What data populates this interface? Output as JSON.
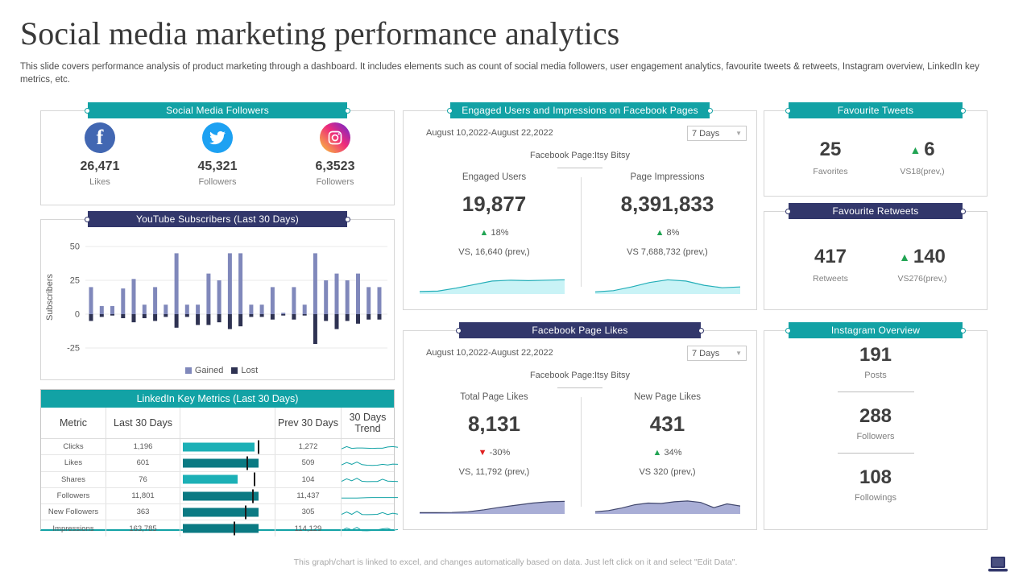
{
  "slide": {
    "title": "Social media marketing performance analytics",
    "subtitle": "This slide covers performance analysis of product marketing through a dashboard. It includes elements such as count of social media followers, user engagement analytics, favourite tweets & retweets, Instagram overview, LinkedIn key metrics, etc.",
    "footer": "This graph/chart is linked to excel, and changes automatically based on data. Just left click on it and select \"Edit Data\"."
  },
  "colors": {
    "teal": "#12a2a5",
    "navy": "#32376b",
    "gained": "#8088bb",
    "lost": "#2e3252",
    "bar_light": "#1cb0b6",
    "bar_dark": "#0b7a83",
    "spark": "#12a2a5",
    "cyan_fill": "#c9f3f6",
    "cyan_stroke": "#23aeb8",
    "purple_fill": "#a9aed6",
    "purple_stroke": "#42486e",
    "up_green": "#21a453",
    "down_red": "#e02020"
  },
  "panels": {
    "followers": {
      "title": "Social Media Followers",
      "items": [
        {
          "network": "facebook",
          "value": "26,471",
          "label": "Likes"
        },
        {
          "network": "twitter",
          "value": "45,321",
          "label": "Followers"
        },
        {
          "network": "instagram",
          "value": "6,3523",
          "label": "Followers"
        }
      ]
    },
    "youtube": {
      "title": "YouTube Subscribers (Last 30 Days)"
    },
    "linkedin": {
      "title": "LinkedIn Key Metrics (Last 30 Days)"
    },
    "engaged": {
      "title": "Engaged Users and Impressions on Facebook Pages",
      "date_range": "August 10,2022-August 22,2022",
      "period": "7 Days",
      "page_label": "Facebook Page:Itsy Bitsy",
      "metrics": [
        {
          "label": "Engaged Users",
          "value": "19,877",
          "delta": {
            "dir": "up",
            "pct": "18%"
          },
          "vs": "VS, 16,640 (prev,)"
        },
        {
          "label": "Page Impressions",
          "value": "8,391,833",
          "delta": {
            "dir": "up",
            "pct": "8%"
          },
          "vs": "VS 7,688,732 (prev,)"
        }
      ]
    },
    "fb_likes": {
      "title": "Facebook Page Likes",
      "date_range": "August 10,2022-August 22,2022",
      "period": "7 Days",
      "page_label": "Facebook Page:Itsy Bitsy",
      "metrics": [
        {
          "label": "Total Page Likes",
          "value": "8,131",
          "delta": {
            "dir": "down",
            "pct": "-30%"
          },
          "vs": "VS, 11,792 (prev,)"
        },
        {
          "label": "New Page Likes",
          "value": "431",
          "delta": {
            "dir": "up",
            "pct": "34%"
          },
          "vs": "VS 320 (prev,)"
        }
      ]
    },
    "fav_tweets": {
      "title": "Favourite Tweets",
      "value": "25",
      "value_label": "Favorites",
      "delta": {
        "dir": "up",
        "value": "6"
      },
      "vs": "VS18(prev,)"
    },
    "fav_retweets": {
      "title": "Favourite Retweets",
      "value": "417",
      "value_label": "Retweets",
      "delta": {
        "dir": "up",
        "value": "140"
      },
      "vs": "VS276(prev,)"
    },
    "instagram": {
      "title": "Instagram Overview",
      "items": [
        {
          "value": "191",
          "label": "Posts"
        },
        {
          "value": "288",
          "label": "Followers"
        },
        {
          "value": "108",
          "label": "Followings"
        }
      ]
    }
  },
  "chart_data": [
    {
      "id": "youtube_subscribers",
      "type": "bar",
      "title": "YouTube Subscribers (Last 30 Days)",
      "xlabel": "",
      "ylabel": "Subscribers",
      "ylim": [
        -25,
        50
      ],
      "yticks": [
        50,
        25,
        0,
        -25
      ],
      "grid": true,
      "legend_position": "bottom",
      "series": [
        {
          "name": "Gained",
          "color": "#8088bb",
          "values": [
            20,
            6,
            6,
            19,
            26,
            7,
            20,
            7,
            45,
            7,
            7,
            30,
            25,
            45,
            45,
            7,
            7,
            20,
            1,
            20,
            7,
            45,
            25,
            30,
            25,
            30,
            20,
            20
          ]
        },
        {
          "name": "Lost",
          "color": "#2e3252",
          "values": [
            -5,
            -2,
            -1,
            -3,
            -6,
            -3,
            -5,
            -2,
            -10,
            -2,
            -8,
            -8,
            -6,
            -11,
            -9,
            -2,
            -2,
            -4,
            -1,
            -4,
            -1,
            -22,
            -5,
            -11,
            -5,
            -7,
            -4,
            -4
          ]
        }
      ]
    },
    {
      "id": "engaged_users_trend",
      "type": "area",
      "palette": "cyan",
      "values": [
        0.12,
        0.14,
        0.28,
        0.45,
        0.62,
        0.66,
        0.64,
        0.66,
        0.68
      ]
    },
    {
      "id": "page_impressions_trend",
      "type": "area",
      "palette": "cyan",
      "values": [
        0.1,
        0.16,
        0.34,
        0.55,
        0.68,
        0.62,
        0.42,
        0.3,
        0.34
      ]
    },
    {
      "id": "total_page_likes_trend",
      "type": "area",
      "palette": "purple",
      "values": [
        0.06,
        0.06,
        0.07,
        0.1,
        0.2,
        0.32,
        0.42,
        0.52,
        0.58,
        0.6
      ]
    },
    {
      "id": "new_page_likes_trend",
      "type": "area",
      "palette": "purple",
      "values": [
        0.1,
        0.16,
        0.28,
        0.44,
        0.52,
        0.5,
        0.58,
        0.62,
        0.55,
        0.3,
        0.48,
        0.38
      ]
    },
    {
      "id": "linkedin_table",
      "type": "table",
      "columns": [
        "Metric",
        "Last 30 Days",
        "",
        "Prev 30 Days",
        "30 Days Trend"
      ],
      "rows": [
        {
          "metric": "Clicks",
          "last30": "1,196",
          "prev30": "1,272",
          "bar_pct": 0.76,
          "marker_pct": 0.82,
          "bar_shade": "light",
          "trend": [
            0.35,
            0.6,
            0.4,
            0.45,
            0.45,
            0.42,
            0.4,
            0.42,
            0.42,
            0.55,
            0.6,
            0.52
          ]
        },
        {
          "metric": "Likes",
          "last30": "601",
          "prev30": "509",
          "bar_pct": 0.8,
          "marker_pct": 0.7,
          "bar_shade": "dark",
          "trend": [
            0.35,
            0.62,
            0.42,
            0.68,
            0.38,
            0.32,
            0.3,
            0.32,
            0.42,
            0.35,
            0.45,
            0.42
          ]
        },
        {
          "metric": "Shares",
          "last30": "76",
          "prev30": "104",
          "bar_pct": 0.58,
          "marker_pct": 0.78,
          "bar_shade": "light",
          "trend": [
            0.32,
            0.6,
            0.38,
            0.66,
            0.32,
            0.28,
            0.3,
            0.3,
            0.55,
            0.35,
            0.32,
            0.3
          ]
        },
        {
          "metric": "Followers",
          "last30": "11,801",
          "prev30": "11,437",
          "bar_pct": 0.8,
          "marker_pct": 0.76,
          "bar_shade": "dark",
          "trend": [
            0.35,
            0.35,
            0.35,
            0.35,
            0.36,
            0.38,
            0.4,
            0.4,
            0.4,
            0.4,
            0.4,
            0.4
          ]
        },
        {
          "metric": "New Followers",
          "last30": "363",
          "prev30": "305",
          "bar_pct": 0.8,
          "marker_pct": 0.68,
          "bar_shade": "dark",
          "trend": [
            0.32,
            0.58,
            0.32,
            0.66,
            0.3,
            0.28,
            0.3,
            0.32,
            0.52,
            0.3,
            0.45,
            0.35
          ]
        },
        {
          "metric": "Impressions",
          "last30": "163,785",
          "prev30": "114,129",
          "bar_pct": 0.8,
          "marker_pct": 0.56,
          "bar_shade": "dark",
          "trend": [
            0.32,
            0.6,
            0.38,
            0.66,
            0.3,
            0.28,
            0.32,
            0.38,
            0.5,
            0.55,
            0.35,
            0.42
          ]
        }
      ]
    }
  ]
}
